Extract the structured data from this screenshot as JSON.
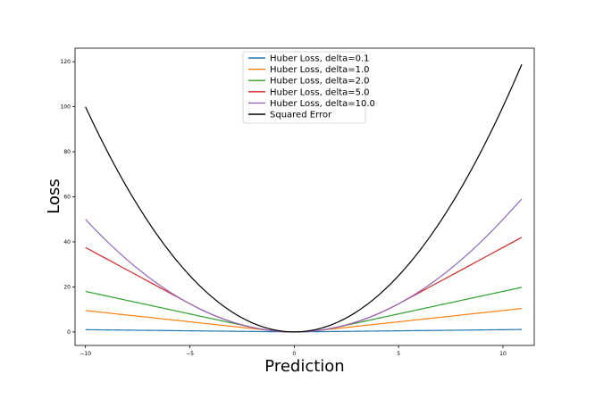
{
  "chart_data": {
    "type": "line",
    "xlabel": "Prediction",
    "ylabel": "Loss",
    "xlim": [
      -10.5,
      11.5
    ],
    "ylim": [
      -6,
      126
    ],
    "x_ticks": [
      -10,
      -5,
      0,
      5,
      10
    ],
    "x_tick_labels": [
      "−10",
      "−5",
      "0",
      "5",
      "10"
    ],
    "y_ticks": [
      0,
      20,
      40,
      60,
      80,
      100,
      120
    ],
    "y_tick_labels": [
      "0",
      "20",
      "40",
      "60",
      "80",
      "100",
      "120"
    ],
    "x_range": [
      -10,
      10.9
    ],
    "legend_position": "top-center",
    "series": [
      {
        "name": "Huber Loss, delta=0.1",
        "kind": "huber",
        "delta": 0.1,
        "color": "#1f77b4"
      },
      {
        "name": "Huber Loss, delta=1.0",
        "kind": "huber",
        "delta": 1.0,
        "color": "#ff7f0e"
      },
      {
        "name": "Huber Loss, delta=2.0",
        "kind": "huber",
        "delta": 2.0,
        "color": "#2ca02c"
      },
      {
        "name": "Huber Loss, delta=5.0",
        "kind": "huber",
        "delta": 5.0,
        "color": "#d62728"
      },
      {
        "name": "Huber Loss, delta=10.0",
        "kind": "huber",
        "delta": 10.0,
        "color": "#9467bd"
      },
      {
        "name": "Squared Error",
        "kind": "squared",
        "color": "#000000"
      }
    ]
  }
}
